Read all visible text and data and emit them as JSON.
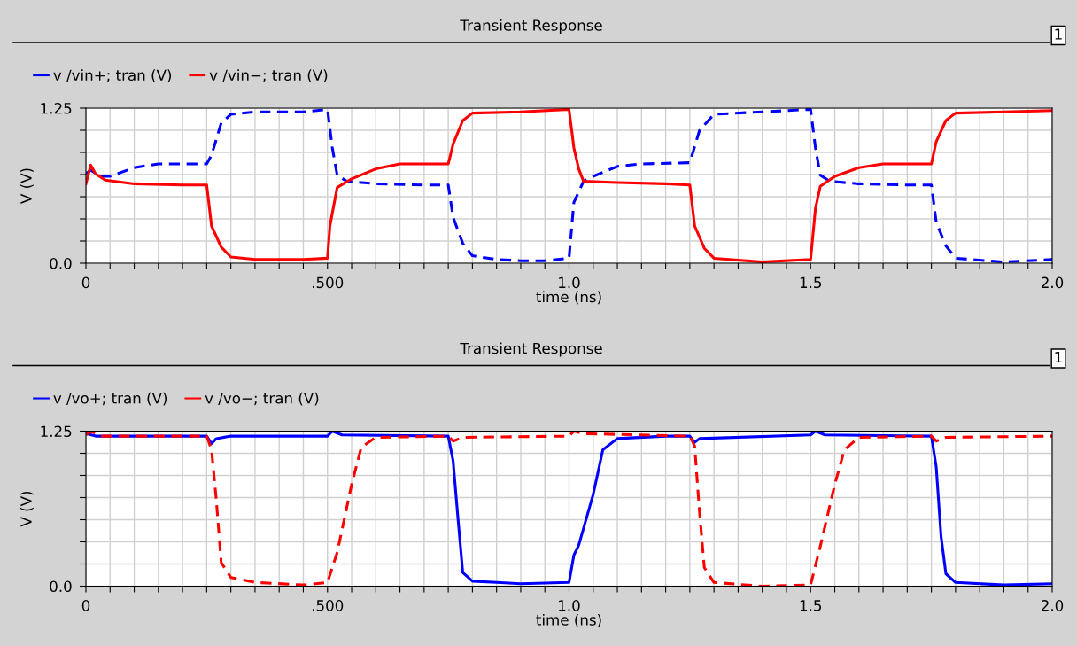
{
  "chart_data": [
    {
      "type": "line",
      "title": "Transient Response",
      "xlabel": "time (ns)",
      "ylabel": "V (V)",
      "annotations": [
        "1"
      ],
      "legend": "top left",
      "grid": true,
      "xlim": [
        0,
        2.0
      ],
      "ylim": [
        0,
        1.25
      ],
      "xticks": [
        {
          "value": 0,
          "label": "0"
        },
        {
          "value": 0.05,
          "label": null
        },
        {
          "value": 0.1,
          "label": null
        },
        {
          "value": 0.15,
          "label": null
        },
        {
          "value": 0.2,
          "label": null
        },
        {
          "value": 0.25,
          "label": null
        },
        {
          "value": 0.3,
          "label": null
        },
        {
          "value": 0.35,
          "label": null
        },
        {
          "value": 0.4,
          "label": null
        },
        {
          "value": 0.45,
          "label": null
        },
        {
          "value": 0.5,
          "label": ".500"
        },
        {
          "value": 0.55,
          "label": null
        },
        {
          "value": 0.6,
          "label": null
        },
        {
          "value": 0.65,
          "label": null
        },
        {
          "value": 0.7,
          "label": null
        },
        {
          "value": 0.75,
          "label": null
        },
        {
          "value": 0.8,
          "label": null
        },
        {
          "value": 0.85,
          "label": null
        },
        {
          "value": 0.9,
          "label": null
        },
        {
          "value": 0.95,
          "label": null
        },
        {
          "value": 1.0,
          "label": "1.0"
        },
        {
          "value": 1.05,
          "label": null
        },
        {
          "value": 1.1,
          "label": null
        },
        {
          "value": 1.15,
          "label": null
        },
        {
          "value": 1.2,
          "label": null
        },
        {
          "value": 1.25,
          "label": null
        },
        {
          "value": 1.3,
          "label": null
        },
        {
          "value": 1.35,
          "label": null
        },
        {
          "value": 1.4,
          "label": null
        },
        {
          "value": 1.45,
          "label": null
        },
        {
          "value": 1.5,
          "label": "1.5"
        },
        {
          "value": 1.55,
          "label": null
        },
        {
          "value": 1.6,
          "label": null
        },
        {
          "value": 1.65,
          "label": null
        },
        {
          "value": 1.7,
          "label": null
        },
        {
          "value": 1.75,
          "label": null
        },
        {
          "value": 1.8,
          "label": null
        },
        {
          "value": 1.85,
          "label": null
        },
        {
          "value": 1.9,
          "label": null
        },
        {
          "value": 1.95,
          "label": null
        },
        {
          "value": 2.0,
          "label": "2.0"
        }
      ],
      "yticks": [
        {
          "value": 0,
          "label": "0.0"
        },
        {
          "value": 0.1786,
          "label": null
        },
        {
          "value": 0.3571,
          "label": null
        },
        {
          "value": 0.5357,
          "label": null
        },
        {
          "value": 0.7143,
          "label": null
        },
        {
          "value": 0.8929,
          "label": null
        },
        {
          "value": 1.0714,
          "label": null
        },
        {
          "value": 1.25,
          "label": "1.25"
        }
      ],
      "series": [
        {
          "name": "v /vin+; tran (V)",
          "color": "#0000ff",
          "line_style": "dashed",
          "x": [
            0,
            0.01,
            0.03,
            0.05,
            0.1,
            0.15,
            0.2,
            0.25,
            0.26,
            0.28,
            0.3,
            0.35,
            0.45,
            0.5,
            0.51,
            0.52,
            0.54,
            0.6,
            0.7,
            0.75,
            0.76,
            0.78,
            0.8,
            0.85,
            0.9,
            0.95,
            1.0,
            1.01,
            1.03,
            1.05,
            1.1,
            1.15,
            1.25,
            1.27,
            1.3,
            1.4,
            1.5,
            1.51,
            1.52,
            1.54,
            1.6,
            1.7,
            1.75,
            1.76,
            1.78,
            1.8,
            1.9,
            2.0
          ],
          "values": [
            0.72,
            0.75,
            0.7,
            0.7,
            0.77,
            0.8,
            0.8,
            0.8,
            0.87,
            1.13,
            1.2,
            1.22,
            1.22,
            1.24,
            0.93,
            0.71,
            0.66,
            0.64,
            0.63,
            0.63,
            0.37,
            0.16,
            0.06,
            0.03,
            0.02,
            0.02,
            0.04,
            0.49,
            0.66,
            0.7,
            0.78,
            0.8,
            0.81,
            1.07,
            1.2,
            1.22,
            1.24,
            0.93,
            0.71,
            0.66,
            0.64,
            0.63,
            0.63,
            0.33,
            0.14,
            0.04,
            0.01,
            0.03
          ]
        },
        {
          "name": "v /vin−; tran (V)",
          "color": "#ff0000",
          "line_style": "solid",
          "x": [
            0,
            0.01,
            0.02,
            0.04,
            0.1,
            0.2,
            0.25,
            0.26,
            0.28,
            0.3,
            0.35,
            0.45,
            0.5,
            0.505,
            0.52,
            0.55,
            0.6,
            0.65,
            0.75,
            0.76,
            0.78,
            0.8,
            0.9,
            1.0,
            1.01,
            1.02,
            1.03,
            1.1,
            1.2,
            1.25,
            1.26,
            1.28,
            1.3,
            1.4,
            1.5,
            1.51,
            1.52,
            1.55,
            1.6,
            1.65,
            1.75,
            1.76,
            1.78,
            1.8,
            1.9,
            2.0
          ],
          "values": [
            0.64,
            0.79,
            0.72,
            0.67,
            0.64,
            0.63,
            0.63,
            0.3,
            0.13,
            0.05,
            0.03,
            0.03,
            0.04,
            0.3,
            0.61,
            0.68,
            0.76,
            0.8,
            0.8,
            0.96,
            1.15,
            1.21,
            1.22,
            1.24,
            0.93,
            0.76,
            0.66,
            0.65,
            0.64,
            0.63,
            0.3,
            0.12,
            0.04,
            0.01,
            0.03,
            0.44,
            0.62,
            0.7,
            0.77,
            0.8,
            0.8,
            0.98,
            1.15,
            1.21,
            1.22,
            1.23
          ]
        }
      ]
    },
    {
      "type": "line",
      "title": "Transient Response",
      "xlabel": "time (ns)",
      "ylabel": "V (V)",
      "annotations": [
        "1"
      ],
      "legend": "top left",
      "grid": true,
      "xlim": [
        0,
        2.0
      ],
      "ylim": [
        0,
        1.25
      ],
      "xticks": [
        {
          "value": 0,
          "label": "0"
        },
        {
          "value": 0.05,
          "label": null
        },
        {
          "value": 0.1,
          "label": null
        },
        {
          "value": 0.15,
          "label": null
        },
        {
          "value": 0.2,
          "label": null
        },
        {
          "value": 0.25,
          "label": null
        },
        {
          "value": 0.3,
          "label": null
        },
        {
          "value": 0.35,
          "label": null
        },
        {
          "value": 0.4,
          "label": null
        },
        {
          "value": 0.45,
          "label": null
        },
        {
          "value": 0.5,
          "label": ".500"
        },
        {
          "value": 0.55,
          "label": null
        },
        {
          "value": 0.6,
          "label": null
        },
        {
          "value": 0.65,
          "label": null
        },
        {
          "value": 0.7,
          "label": null
        },
        {
          "value": 0.75,
          "label": null
        },
        {
          "value": 0.8,
          "label": null
        },
        {
          "value": 0.85,
          "label": null
        },
        {
          "value": 0.9,
          "label": null
        },
        {
          "value": 0.95,
          "label": null
        },
        {
          "value": 1.0,
          "label": "1.0"
        },
        {
          "value": 1.05,
          "label": null
        },
        {
          "value": 1.1,
          "label": null
        },
        {
          "value": 1.15,
          "label": null
        },
        {
          "value": 1.2,
          "label": null
        },
        {
          "value": 1.25,
          "label": null
        },
        {
          "value": 1.3,
          "label": null
        },
        {
          "value": 1.35,
          "label": null
        },
        {
          "value": 1.4,
          "label": null
        },
        {
          "value": 1.45,
          "label": null
        },
        {
          "value": 1.5,
          "label": "1.5"
        },
        {
          "value": 1.55,
          "label": null
        },
        {
          "value": 1.6,
          "label": null
        },
        {
          "value": 1.65,
          "label": null
        },
        {
          "value": 1.7,
          "label": null
        },
        {
          "value": 1.75,
          "label": null
        },
        {
          "value": 1.8,
          "label": null
        },
        {
          "value": 1.85,
          "label": null
        },
        {
          "value": 1.9,
          "label": null
        },
        {
          "value": 1.95,
          "label": null
        },
        {
          "value": 2.0,
          "label": "2.0"
        }
      ],
      "yticks": [
        {
          "value": 0,
          "label": "0.0"
        },
        {
          "value": 0.1786,
          "label": null
        },
        {
          "value": 0.3571,
          "label": null
        },
        {
          "value": 0.5357,
          "label": null
        },
        {
          "value": 0.7143,
          "label": null
        },
        {
          "value": 0.8929,
          "label": null
        },
        {
          "value": 1.0714,
          "label": null
        },
        {
          "value": 1.25,
          "label": "1.25"
        }
      ],
      "series": [
        {
          "name": "v /vo+; tran (V)",
          "color": "#0000ff",
          "line_style": "solid",
          "x": [
            0,
            0.02,
            0.25,
            0.26,
            0.27,
            0.3,
            0.5,
            0.51,
            0.53,
            0.75,
            0.76,
            0.77,
            0.78,
            0.8,
            0.85,
            0.9,
            1.0,
            1.01,
            1.02,
            1.05,
            1.07,
            1.1,
            1.2,
            1.25,
            1.26,
            1.27,
            1.5,
            1.51,
            1.53,
            1.75,
            1.76,
            1.77,
            1.78,
            1.8,
            1.9,
            2.0
          ],
          "values": [
            1.23,
            1.21,
            1.21,
            1.15,
            1.19,
            1.21,
            1.21,
            1.25,
            1.22,
            1.21,
            1.01,
            0.55,
            0.11,
            0.04,
            0.03,
            0.02,
            0.03,
            0.25,
            0.33,
            0.74,
            1.1,
            1.19,
            1.21,
            1.21,
            1.16,
            1.19,
            1.22,
            1.25,
            1.22,
            1.21,
            0.96,
            0.4,
            0.1,
            0.03,
            0.01,
            0.02
          ]
        },
        {
          "name": "v /vo−; tran (V)",
          "color": "#ff0000",
          "line_style": "dashed",
          "x": [
            0,
            0.01,
            0.03,
            0.25,
            0.26,
            0.27,
            0.28,
            0.3,
            0.35,
            0.45,
            0.5,
            0.52,
            0.55,
            0.57,
            0.6,
            0.75,
            0.76,
            0.78,
            1.0,
            1.01,
            1.03,
            1.25,
            1.26,
            1.27,
            1.28,
            1.3,
            1.4,
            1.5,
            1.52,
            1.55,
            1.57,
            1.6,
            1.75,
            1.76,
            1.78,
            2.0
          ],
          "values": [
            1.22,
            1.25,
            1.21,
            1.21,
            1.1,
            0.69,
            0.19,
            0.07,
            0.03,
            0.01,
            0.03,
            0.27,
            0.82,
            1.12,
            1.2,
            1.21,
            1.17,
            1.2,
            1.21,
            1.25,
            1.23,
            1.21,
            1.13,
            0.6,
            0.15,
            0.03,
            0.0,
            0.01,
            0.32,
            0.82,
            1.1,
            1.2,
            1.21,
            1.17,
            1.2,
            1.21
          ]
        }
      ]
    }
  ]
}
